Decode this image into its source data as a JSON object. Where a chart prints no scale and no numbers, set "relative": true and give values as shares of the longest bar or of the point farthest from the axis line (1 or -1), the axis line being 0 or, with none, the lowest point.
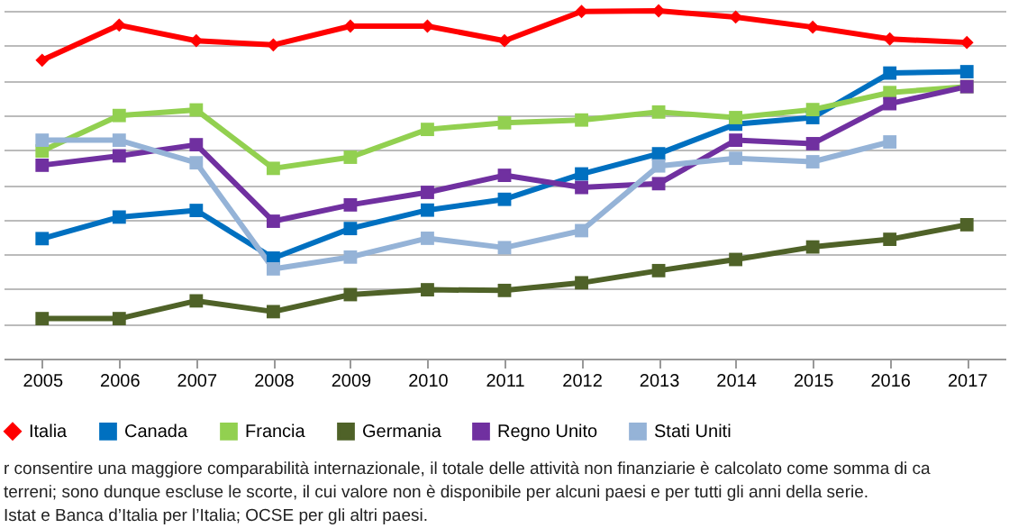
{
  "chart_data": {
    "type": "line",
    "relative": true,
    "grid": "y",
    "legend": "bottom",
    "marker": "square",
    "line_style": "solid",
    "categories": [
      "2005",
      "2006",
      "2007",
      "2008",
      "2009",
      "2010",
      "2011",
      "2012",
      "2013",
      "2014",
      "2015",
      "2016",
      "2017"
    ],
    "series": [
      {
        "name": "Italia",
        "color": "#ff0000",
        "marker": "diamond",
        "values": [
          0.858,
          0.959,
          0.914,
          0.902,
          0.956,
          0.956,
          0.914,
          0.998,
          1,
          0.982,
          0.953,
          0.919,
          0.909
        ]
      },
      {
        "name": "Canada",
        "color": "#0070c0",
        "values": [
          0.345,
          0.407,
          0.426,
          0.289,
          0.374,
          0.427,
          0.458,
          0.531,
          0.589,
          0.674,
          0.693,
          0.821,
          0.825
        ]
      },
      {
        "name": "Francia",
        "color": "#92d050",
        "values": [
          0.597,
          0.699,
          0.715,
          0.547,
          0.579,
          0.659,
          0.678,
          0.686,
          0.709,
          0.693,
          0.716,
          0.765,
          0.782
        ]
      },
      {
        "name": "Germania",
        "color": "#4f6228",
        "values": [
          0.115,
          0.115,
          0.166,
          0.135,
          0.184,
          0.198,
          0.196,
          0.218,
          0.253,
          0.285,
          0.321,
          0.343,
          0.385
        ]
      },
      {
        "name": "Regno Unito",
        "color": "#7030a0",
        "values": [
          0.556,
          0.583,
          0.615,
          0.395,
          0.442,
          0.478,
          0.527,
          0.492,
          0.503,
          0.628,
          0.618,
          0.733,
          0.782
        ]
      },
      {
        "name": "Stati Uniti",
        "color": "#95b3d7",
        "values": [
          0.628,
          0.628,
          0.563,
          0.258,
          0.292,
          0.346,
          0.319,
          0.368,
          0.554,
          0.576,
          0.566,
          0.623,
          null
        ]
      }
    ],
    "annotations": [
      "r consentire una maggiore comparabilità internazionale, il totale delle attività non finanziarie è calcolato come somma di ca",
      "terreni; sono dunque escluse le scorte, il cui valore non è disponibile per alcuni paesi e per tutti gli anni della serie.",
      "Istat e Banca d’Italia per l’Italia; OCSE per gli altri paesi."
    ]
  }
}
